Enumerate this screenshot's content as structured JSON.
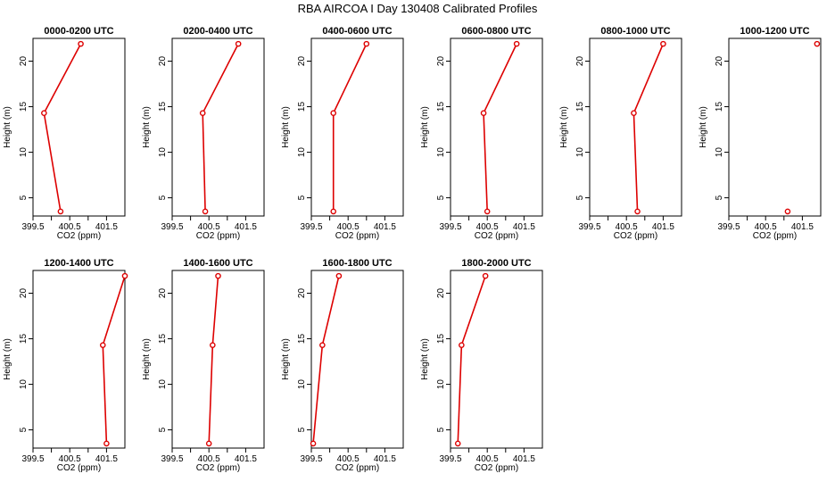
{
  "figure": {
    "title": "RBA AIRCOA I  Day 130408  Calibrated Profiles"
  },
  "chart_data": [
    {
      "type": "line",
      "title": "0000-0200 UTC",
      "xlabel": "CO2 (ppm)",
      "ylabel": "Height (m)",
      "xlim": [
        399.5,
        402.0
      ],
      "ylim": [
        3.0,
        22.5
      ],
      "xticks": [
        399.5,
        400.5,
        401.5
      ],
      "yticks": [
        5,
        10,
        15,
        20
      ],
      "x": [
        400.25,
        399.8,
        400.8
      ],
      "y": [
        3.5,
        14.3,
        21.9
      ]
    },
    {
      "type": "line",
      "title": "0200-0400 UTC",
      "xlabel": "CO2 (ppm)",
      "ylabel": "Height (m)",
      "xlim": [
        399.5,
        402.0
      ],
      "ylim": [
        3.0,
        22.5
      ],
      "xticks": [
        399.5,
        400.5,
        401.5
      ],
      "yticks": [
        5,
        10,
        15,
        20
      ],
      "x": [
        400.4,
        400.33,
        401.3
      ],
      "y": [
        3.5,
        14.3,
        21.9
      ]
    },
    {
      "type": "line",
      "title": "0400-0600 UTC",
      "xlabel": "CO2 (ppm)",
      "ylabel": "Height (m)",
      "xlim": [
        399.5,
        402.0
      ],
      "ylim": [
        3.0,
        22.5
      ],
      "xticks": [
        399.5,
        400.5,
        401.5
      ],
      "yticks": [
        5,
        10,
        15,
        20
      ],
      "x": [
        400.1,
        400.1,
        401.0
      ],
      "y": [
        3.5,
        14.3,
        21.9
      ]
    },
    {
      "type": "line",
      "title": "0600-0800 UTC",
      "xlabel": "CO2 (ppm)",
      "ylabel": "Height (m)",
      "xlim": [
        399.5,
        402.0
      ],
      "ylim": [
        3.0,
        22.5
      ],
      "xticks": [
        399.5,
        400.5,
        401.5
      ],
      "yticks": [
        5,
        10,
        15,
        20
      ],
      "x": [
        400.5,
        400.4,
        401.3
      ],
      "y": [
        3.5,
        14.3,
        21.9
      ]
    },
    {
      "type": "line",
      "title": "0800-1000 UTC",
      "xlabel": "CO2 (ppm)",
      "ylabel": "Height (m)",
      "xlim": [
        399.5,
        402.0
      ],
      "ylim": [
        3.0,
        22.5
      ],
      "xticks": [
        399.5,
        400.5,
        401.5
      ],
      "yticks": [
        5,
        10,
        15,
        20
      ],
      "x": [
        400.8,
        400.7,
        401.5
      ],
      "y": [
        3.5,
        14.3,
        21.9
      ]
    },
    {
      "type": "line",
      "title": "1000-1200 UTC",
      "xlabel": "CO2 (ppm)",
      "ylabel": "Height (m)",
      "xlim": [
        399.5,
        402.0
      ],
      "ylim": [
        3.0,
        22.5
      ],
      "xticks": [
        399.5,
        400.5,
        401.5
      ],
      "yticks": [
        5,
        10,
        15,
        20
      ],
      "x": [
        401.1,
        null,
        401.9
      ],
      "y": [
        3.5,
        14.3,
        21.9
      ]
    },
    {
      "type": "line",
      "title": "1200-1400 UTC",
      "xlabel": "CO2 (ppm)",
      "ylabel": "Height (m)",
      "xlim": [
        399.5,
        402.0
      ],
      "ylim": [
        3.0,
        22.5
      ],
      "xticks": [
        399.5,
        400.5,
        401.5
      ],
      "yticks": [
        5,
        10,
        15,
        20
      ],
      "x": [
        401.5,
        401.4,
        402.0
      ],
      "y": [
        3.5,
        14.3,
        21.9
      ]
    },
    {
      "type": "line",
      "title": "1400-1600 UTC",
      "xlabel": "CO2 (ppm)",
      "ylabel": "Height (m)",
      "xlim": [
        399.5,
        402.0
      ],
      "ylim": [
        3.0,
        22.5
      ],
      "xticks": [
        399.5,
        400.5,
        401.5
      ],
      "yticks": [
        5,
        10,
        15,
        20
      ],
      "x": [
        400.5,
        400.6,
        400.75
      ],
      "y": [
        3.5,
        14.3,
        21.9
      ]
    },
    {
      "type": "line",
      "title": "1600-1800 UTC",
      "xlabel": "CO2 (ppm)",
      "ylabel": "Height (m)",
      "xlim": [
        399.5,
        402.0
      ],
      "ylim": [
        3.0,
        22.5
      ],
      "xticks": [
        399.5,
        400.5,
        401.5
      ],
      "yticks": [
        5,
        10,
        15,
        20
      ],
      "x": [
        399.55,
        399.8,
        400.25
      ],
      "y": [
        3.5,
        14.3,
        21.9
      ]
    },
    {
      "type": "line",
      "title": "1800-2000 UTC",
      "xlabel": "CO2 (ppm)",
      "ylabel": "Height (m)",
      "xlim": [
        399.5,
        402.0
      ],
      "ylim": [
        3.0,
        22.5
      ],
      "xticks": [
        399.5,
        400.5,
        401.5
      ],
      "yticks": [
        5,
        10,
        15,
        20
      ],
      "x": [
        399.7,
        399.8,
        400.45
      ],
      "y": [
        3.5,
        14.3,
        21.9
      ]
    }
  ],
  "colors": {
    "line": "#dd0000",
    "marker": "#dd0000",
    "axis": "#000000"
  }
}
